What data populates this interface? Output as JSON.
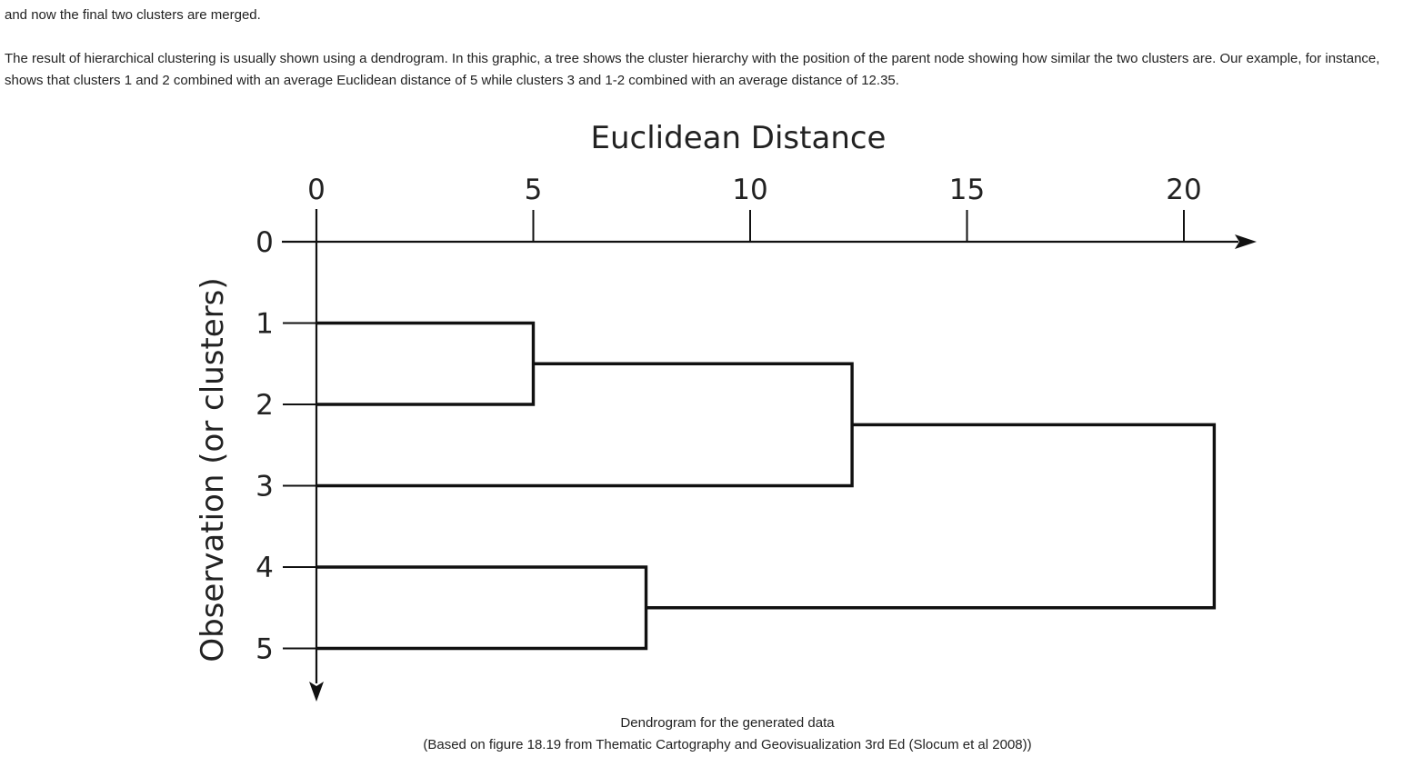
{
  "paragraphs": {
    "intro": "and now the final two clusters are merged.",
    "explanation": "The result of hierarchical clustering is usually shown using a dendrogram. In this graphic, a tree shows the cluster hierarchy with the position of the parent node showing how similar the two clusters are. Our example, for instance, shows that clusters 1 and 2 combined with an average Euclidean distance of 5 while clusters 3 and 1-2 combined with an average distance of 12.35."
  },
  "figure": {
    "caption_line1": "Dendrogram for the generated data",
    "caption_line2": "(Based on figure 18.19 from Thematic Cartography and Geovisualization 3rd Ed (Slocum et al 2008))"
  },
  "chart_data": {
    "type": "dendrogram",
    "title": "Euclidean Distance",
    "ylabel": "Observation (or clusters)",
    "x_ticks": [
      0,
      5,
      10,
      15,
      20
    ],
    "x_tick_labels": [
      "0",
      "5",
      "10",
      "15",
      "20"
    ],
    "xlim": [
      0,
      21.5
    ],
    "observations": [
      "0",
      "1",
      "2",
      "3",
      "4",
      "5"
    ],
    "merges": [
      {
        "a": "1",
        "b": "2",
        "distance": 5
      },
      {
        "a": "4",
        "b": "5",
        "distance": 7.6
      },
      {
        "a": "1-2",
        "b": "3",
        "distance": 12.35
      },
      {
        "a": "1-2-3",
        "b": "4-5",
        "distance": 20.7
      }
    ]
  }
}
